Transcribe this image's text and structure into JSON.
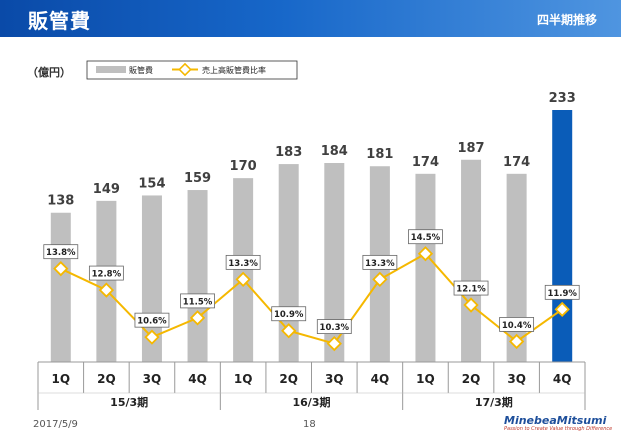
{
  "header": {
    "title": "販管費",
    "subtitle": "四半期推移"
  },
  "footer": {
    "date": "2017/5/9",
    "page": "18",
    "logo": "MinebeaMitsumi",
    "tagline": "Passion to Create Value through Difference"
  },
  "chart_data": {
    "type": "bar",
    "unit_label": "（億円）",
    "categories": [
      "1Q",
      "2Q",
      "3Q",
      "4Q",
      "1Q",
      "2Q",
      "3Q",
      "4Q",
      "1Q",
      "2Q",
      "3Q",
      "4Q"
    ],
    "groups": [
      {
        "label": "15/3期",
        "start": 0,
        "count": 4
      },
      {
        "label": "16/3期",
        "start": 4,
        "count": 4
      },
      {
        "label": "17/3期",
        "start": 8,
        "count": 4
      }
    ],
    "series": [
      {
        "name": "販管費",
        "type": "bar",
        "values": [
          138,
          149,
          154,
          159,
          170,
          183,
          184,
          181,
          174,
          187,
          174,
          233
        ],
        "color": "#bfbfbf",
        "highlight_index": 11,
        "highlight_color": "#0a5cb8"
      },
      {
        "name": "売上高販管費比率",
        "type": "line",
        "unit": "%",
        "values": [
          13.8,
          12.8,
          10.6,
          11.5,
          13.3,
          10.9,
          10.3,
          13.3,
          14.5,
          12.1,
          10.4,
          11.9
        ],
        "labels": [
          "13.8%",
          "12.8%",
          "10.6%",
          "11.5%",
          "13.3%",
          "10.9%",
          "10.3%",
          "13.3%",
          "14.5%",
          "12.1%",
          "10.4%",
          "11.9%"
        ],
        "color": "#f5b800"
      }
    ],
    "legend_position": "top-left",
    "grid": false
  }
}
